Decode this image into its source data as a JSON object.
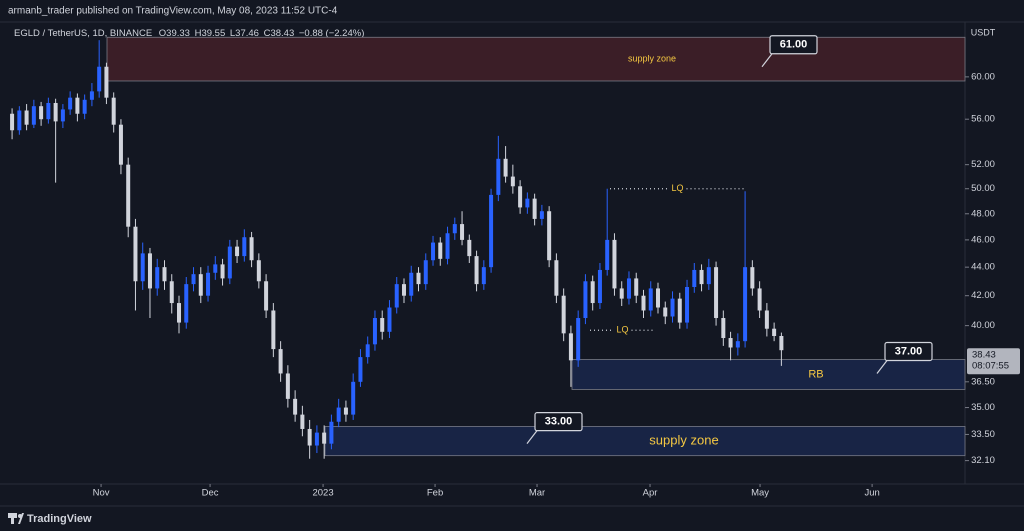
{
  "header": {
    "publisher": "armanb_trader published on TradingView.com, May 08, 2023 11:52 UTC-4"
  },
  "footer": {
    "brand": "TradingView"
  },
  "chart_data": {
    "type": "candlestick",
    "legend": {
      "symbol": "EGLD / TetherUS, 1D, BINANCE",
      "open": "O39.33",
      "high": "H39.55",
      "low": "L37.46",
      "close": "C38.43",
      "change": "−0.88 (−2.24%)"
    },
    "unit": "USDT",
    "log_scale": true,
    "grid": false,
    "up_color": "#2962ff",
    "down_color": "#d1d4dc",
    "xlim": [
      -0.7,
      131.3
    ],
    "ylim": [
      30.9,
      65.4
    ],
    "xticks": [
      {
        "value": 12.26,
        "label": "Nov"
      },
      {
        "value": 27.28,
        "label": "Dec"
      },
      {
        "value": 42.85,
        "label": "2023"
      },
      {
        "value": 58.28,
        "label": "Feb"
      },
      {
        "value": 72.33,
        "label": "Mar"
      },
      {
        "value": 87.9,
        "label": "Apr"
      },
      {
        "value": 103.06,
        "label": "May"
      },
      {
        "value": 118.5,
        "label": "Jun"
      }
    ],
    "yticks": [
      {
        "value": 60,
        "label": "60.00"
      },
      {
        "value": 56,
        "label": "56.00"
      },
      {
        "value": 52,
        "label": "52.00"
      },
      {
        "value": 50,
        "label": "50.00"
      },
      {
        "value": 48,
        "label": "48.00"
      },
      {
        "value": 46,
        "label": "46.00"
      },
      {
        "value": 44,
        "label": "44.00"
      },
      {
        "value": 42,
        "label": "42.00"
      },
      {
        "value": 40,
        "label": "40.00"
      },
      {
        "value": 36.5,
        "label": "36.50"
      },
      {
        "value": 35,
        "label": "35.00"
      },
      {
        "value": 33.5,
        "label": "33.50"
      },
      {
        "value": 32.1,
        "label": "32.10"
      }
    ],
    "last_price": 38.43,
    "countdown": "08:07:55",
    "zones": [
      {
        "label": "supply zone",
        "range": [
          59.6,
          64.0
        ],
        "color": "#3b1e27"
      },
      {
        "label": "RB",
        "range": [
          36.05,
          37.85
        ],
        "color": "#182445"
      },
      {
        "label": "supply zone",
        "range": [
          32.36,
          33.94
        ],
        "color": "#182445"
      }
    ],
    "callouts": [
      {
        "value": 61,
        "label": "61.00"
      },
      {
        "value": 37,
        "label": "37.00"
      },
      {
        "value": 33,
        "label": "33.00"
      }
    ],
    "levels": [
      {
        "label": "LQ",
        "value": 50
      },
      {
        "label": "LQ",
        "value": 39.7
      }
    ],
    "candles": [
      [
        56.5,
        57.0,
        54.2,
        55.0
      ],
      [
        55.0,
        57.2,
        54.6,
        56.8
      ],
      [
        56.8,
        57.4,
        55.0,
        55.5
      ],
      [
        55.5,
        57.8,
        55.2,
        57.2
      ],
      [
        57.2,
        57.6,
        55.4,
        56.0
      ],
      [
        56.0,
        58.0,
        55.6,
        57.5
      ],
      [
        57.5,
        57.9,
        50.5,
        55.8
      ],
      [
        55.8,
        57.4,
        55.2,
        56.9
      ],
      [
        56.9,
        58.6,
        56.4,
        58.0
      ],
      [
        58.0,
        58.4,
        55.8,
        56.5
      ],
      [
        56.5,
        58.3,
        56.0,
        57.8
      ],
      [
        57.8,
        59.4,
        57.2,
        58.6
      ],
      [
        58.6,
        63.7,
        58.0,
        61.0
      ],
      [
        61.0,
        61.4,
        57.4,
        58.0
      ],
      [
        58.0,
        58.5,
        54.8,
        55.5
      ],
      [
        55.5,
        56.0,
        51.2,
        52.0
      ],
      [
        52.0,
        52.6,
        46.2,
        47.0
      ],
      [
        47.0,
        47.6,
        41.0,
        43.0
      ],
      [
        43.0,
        45.8,
        42.4,
        45.0
      ],
      [
        45.0,
        45.4,
        40.5,
        42.5
      ],
      [
        42.5,
        44.6,
        42.0,
        44.0
      ],
      [
        44.0,
        44.5,
        42.4,
        43.0
      ],
      [
        43.0,
        43.5,
        40.8,
        41.5
      ],
      [
        41.5,
        42.0,
        39.5,
        40.2
      ],
      [
        40.2,
        43.3,
        39.8,
        42.8
      ],
      [
        42.8,
        44.0,
        42.3,
        43.5
      ],
      [
        43.5,
        44.0,
        41.5,
        42.0
      ],
      [
        42.0,
        44.1,
        41.6,
        43.6
      ],
      [
        43.6,
        44.8,
        43.1,
        44.2
      ],
      [
        44.2,
        44.6,
        42.7,
        43.2
      ],
      [
        43.2,
        46.0,
        42.8,
        45.5
      ],
      [
        45.5,
        46.0,
        44.3,
        44.8
      ],
      [
        44.8,
        46.8,
        44.4,
        46.2
      ],
      [
        46.2,
        46.6,
        44.0,
        44.5
      ],
      [
        44.5,
        45.0,
        42.5,
        43.0
      ],
      [
        43.0,
        43.5,
        40.5,
        41.0
      ],
      [
        41.0,
        41.5,
        38.0,
        38.5
      ],
      [
        38.5,
        39.0,
        36.5,
        37.0
      ],
      [
        37.0,
        37.5,
        35.0,
        35.5
      ],
      [
        35.5,
        36.0,
        34.2,
        34.6
      ],
      [
        34.6,
        35.1,
        33.4,
        33.8
      ],
      [
        33.8,
        34.3,
        32.2,
        32.9
      ],
      [
        32.9,
        34.0,
        32.5,
        33.6
      ],
      [
        33.6,
        34.0,
        32.2,
        33.0
      ],
      [
        33.0,
        34.6,
        32.7,
        34.2
      ],
      [
        34.2,
        35.5,
        33.9,
        35.0
      ],
      [
        35.0,
        35.4,
        34.2,
        34.6
      ],
      [
        34.6,
        37.0,
        34.3,
        36.5
      ],
      [
        36.5,
        38.5,
        36.2,
        38.0
      ],
      [
        38.0,
        39.3,
        37.6,
        38.8
      ],
      [
        38.8,
        41.0,
        38.4,
        40.5
      ],
      [
        40.5,
        41.0,
        39.1,
        39.6
      ],
      [
        39.6,
        41.7,
        39.2,
        41.2
      ],
      [
        41.2,
        43.3,
        40.8,
        42.8
      ],
      [
        42.8,
        43.2,
        41.5,
        42.0
      ],
      [
        42.0,
        44.1,
        41.6,
        43.6
      ],
      [
        43.6,
        44.0,
        42.3,
        42.8
      ],
      [
        42.8,
        45.0,
        42.4,
        44.5
      ],
      [
        44.5,
        46.3,
        44.1,
        45.8
      ],
      [
        45.8,
        46.2,
        44.1,
        44.6
      ],
      [
        44.6,
        47.0,
        44.2,
        46.5
      ],
      [
        46.5,
        47.7,
        46.0,
        47.2
      ],
      [
        47.2,
        48.2,
        45.6,
        46.0
      ],
      [
        46.0,
        46.4,
        44.3,
        44.8
      ],
      [
        44.8,
        45.2,
        42.3,
        42.8
      ],
      [
        42.8,
        44.5,
        42.4,
        44.0
      ],
      [
        44.0,
        50.0,
        43.6,
        49.5
      ],
      [
        49.5,
        54.5,
        49.0,
        52.5
      ],
      [
        52.5,
        53.6,
        50.5,
        51.0
      ],
      [
        51.0,
        52.0,
        49.6,
        50.2
      ],
      [
        50.2,
        50.7,
        48.0,
        48.5
      ],
      [
        48.5,
        49.7,
        48.0,
        49.2
      ],
      [
        49.2,
        49.6,
        47.1,
        47.6
      ],
      [
        47.6,
        48.7,
        47.1,
        48.2
      ],
      [
        48.2,
        48.6,
        44.0,
        44.5
      ],
      [
        44.5,
        45.0,
        41.5,
        42.0
      ],
      [
        42.0,
        42.5,
        39.0,
        39.5
      ],
      [
        39.5,
        40.0,
        36.2,
        37.8
      ],
      [
        37.8,
        41.0,
        37.4,
        40.5
      ],
      [
        40.5,
        43.5,
        40.1,
        43.0
      ],
      [
        43.0,
        43.4,
        41.0,
        41.5
      ],
      [
        41.5,
        44.3,
        41.1,
        43.8
      ],
      [
        43.8,
        50.0,
        43.4,
        46.0
      ],
      [
        46.0,
        46.5,
        42.0,
        42.5
      ],
      [
        42.5,
        43.0,
        41.3,
        41.8
      ],
      [
        41.8,
        43.7,
        41.4,
        43.2
      ],
      [
        43.2,
        43.6,
        41.5,
        42.0
      ],
      [
        42.0,
        42.4,
        40.5,
        41.0
      ],
      [
        41.0,
        43.0,
        40.6,
        42.5
      ],
      [
        42.5,
        42.9,
        40.8,
        41.2
      ],
      [
        41.2,
        41.6,
        40.1,
        40.6
      ],
      [
        40.6,
        42.3,
        40.2,
        41.8
      ],
      [
        41.8,
        42.2,
        39.8,
        40.2
      ],
      [
        40.2,
        43.1,
        39.8,
        42.6
      ],
      [
        42.6,
        44.3,
        42.2,
        43.8
      ],
      [
        43.8,
        44.2,
        42.3,
        42.8
      ],
      [
        42.8,
        44.6,
        42.4,
        44.0
      ],
      [
        44.0,
        44.4,
        40.0,
        40.5
      ],
      [
        40.5,
        41.0,
        38.7,
        39.2
      ],
      [
        39.2,
        39.6,
        37.8,
        38.6
      ],
      [
        38.6,
        39.5,
        38.1,
        39.0
      ],
      [
        39.0,
        49.8,
        38.6,
        44.0
      ],
      [
        44.0,
        44.5,
        42.0,
        42.5
      ],
      [
        42.5,
        43.0,
        40.5,
        41.0
      ],
      [
        41.0,
        41.5,
        39.3,
        39.8
      ],
      [
        39.8,
        40.2,
        39.0,
        39.33
      ],
      [
        39.33,
        39.55,
        37.46,
        38.43
      ]
    ]
  }
}
